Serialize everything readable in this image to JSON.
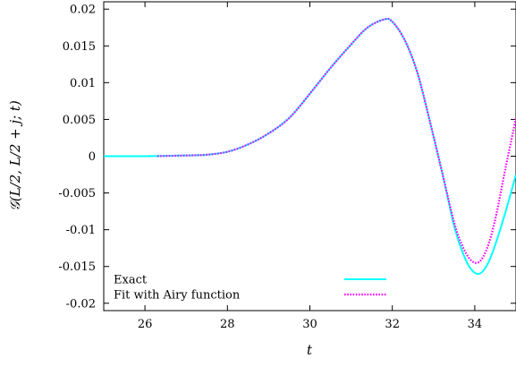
{
  "chart_data": {
    "type": "line",
    "title": "",
    "xlabel": "t",
    "ylabel": "𝒢(L/2, L/2 + j; t)",
    "xlim": [
      25,
      35
    ],
    "ylim": [
      -0.021,
      0.021
    ],
    "x_ticks": [
      26,
      28,
      30,
      32,
      34
    ],
    "x_tick_labels": [
      "26",
      "28",
      "30",
      "32",
      "34"
    ],
    "y_ticks": [
      -0.02,
      -0.015,
      -0.01,
      -0.005,
      0,
      0.005,
      0.01,
      0.015,
      0.02
    ],
    "y_tick_labels": [
      "-0.02",
      "-0.015",
      "-0.01",
      "-0.005",
      "0",
      "0.005",
      "0.01",
      "0.015",
      "0.02"
    ],
    "grid": false,
    "legend_position": "bottom-left",
    "series": [
      {
        "name": "Exact",
        "color": "#00ffff",
        "style": "solid",
        "x": [
          25.0,
          26.0,
          27.0,
          27.5,
          28.0,
          28.5,
          29.0,
          29.5,
          30.0,
          30.5,
          31.0,
          31.4,
          31.8,
          32.0,
          32.3,
          32.6,
          32.9,
          33.2,
          33.5,
          33.7,
          33.9,
          34.1,
          34.3,
          34.5,
          34.75,
          35.0
        ],
        "y": [
          0.0,
          0.0,
          0.0001,
          0.0002,
          0.0006,
          0.0016,
          0.0031,
          0.0052,
          0.0085,
          0.012,
          0.0152,
          0.0175,
          0.0186,
          0.0183,
          0.0158,
          0.0115,
          0.005,
          -0.002,
          -0.0095,
          -0.013,
          -0.0153,
          -0.016,
          -0.0148,
          -0.012,
          -0.0075,
          -0.0025
        ]
      },
      {
        "name": "Fit with Airy function",
        "color": "#ff00ff",
        "style": "dotted",
        "x": [
          26.3,
          27.0,
          27.5,
          28.0,
          28.5,
          29.0,
          29.5,
          30.0,
          30.5,
          31.0,
          31.4,
          31.8,
          32.0,
          32.3,
          32.6,
          32.9,
          33.2,
          33.5,
          33.7,
          33.9,
          34.1,
          34.3,
          34.5,
          34.75,
          35.0
        ],
        "y": [
          0.0,
          0.0001,
          0.0002,
          0.0006,
          0.0016,
          0.0031,
          0.0052,
          0.0085,
          0.012,
          0.0152,
          0.0175,
          0.0186,
          0.0183,
          0.0158,
          0.0115,
          0.005,
          -0.002,
          -0.009,
          -0.0122,
          -0.0141,
          -0.0144,
          -0.0125,
          -0.0085,
          -0.0015,
          0.0052
        ]
      }
    ]
  }
}
